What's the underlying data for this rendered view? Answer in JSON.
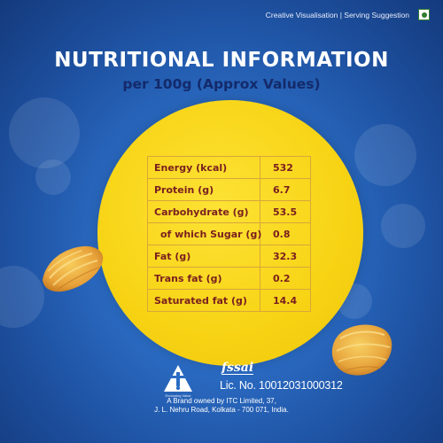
{
  "caption": "Creative Visualisation | Serving Suggestion",
  "title": "NUTRITIONAL INFORMATION",
  "subtitle": "per 100g (Approx Values)",
  "nutrition": [
    {
      "label": "Energy (kcal)",
      "value": "532"
    },
    {
      "label": "Protein (g)",
      "value": "6.7"
    },
    {
      "label": "Carbohydrate (g)",
      "value": "53.5"
    },
    {
      "label": "of which Sugar (g)",
      "value": "0.8"
    },
    {
      "label": "Fat (g)",
      "value": "32.3"
    },
    {
      "label": "Trans fat (g)",
      "value": "0.2"
    },
    {
      "label": "Saturated fat (g)",
      "value": "14.4"
    }
  ],
  "footer": {
    "endorsing": "Endorsing Value",
    "fssai": "fssai",
    "license": "Lic. No. 10012031000312",
    "address_line1": "A Brand owned by ITC Limited, 37,",
    "address_line2": "J. L. Nehru Road, Kolkata - 700 071, India."
  },
  "icons": {
    "veg": "veg-mark-icon",
    "brand": "itc-logo-icon",
    "fssai": "fssai-logo-icon"
  },
  "colors": {
    "background": "#2b6cc4",
    "circle": "#f7d314",
    "table_text": "#7a1f1f",
    "subtitle": "#132a6b",
    "veg_green": "#2f7d32"
  }
}
